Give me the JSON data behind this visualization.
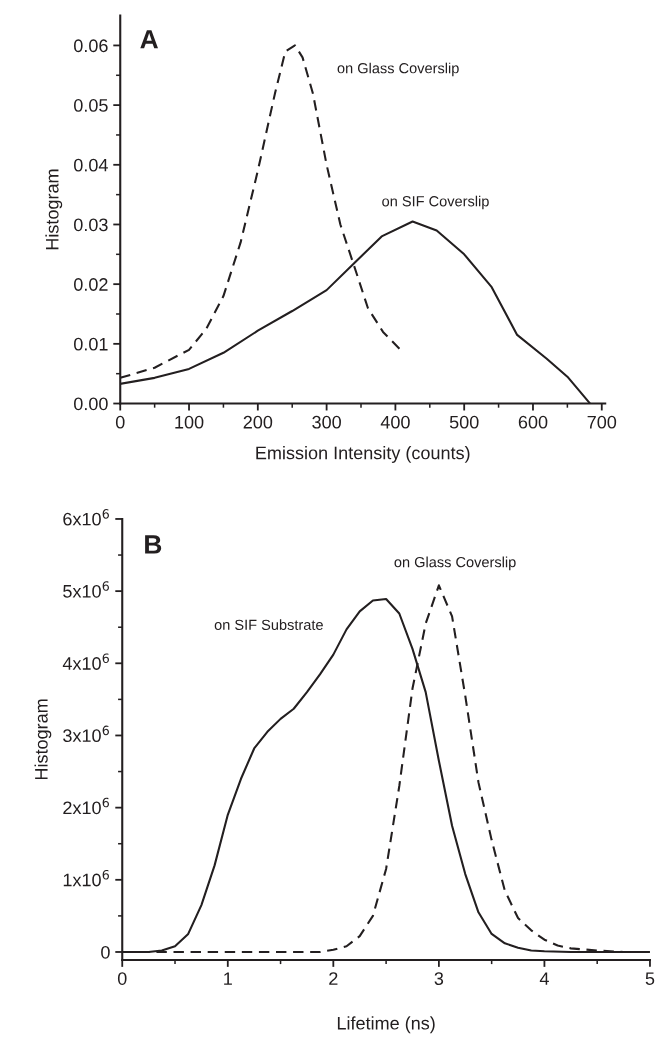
{
  "chart_data": [
    {
      "type": "line",
      "xlabel": "Emission Intensity (counts)",
      "ylabel": "Histogram",
      "xlim": [
        0,
        705
      ],
      "ylim": [
        0,
        0.065
      ],
      "xticks": [
        0,
        {
          "value": 50,
          "label": null
        },
        100,
        {
          "value": 150,
          "label": null
        },
        200,
        {
          "value": 250,
          "label": null
        },
        300,
        {
          "value": 350,
          "label": null
        },
        400,
        {
          "value": 450,
          "label": null
        },
        500,
        {
          "value": 550,
          "label": null
        },
        600,
        {
          "value": 650,
          "label": null
        },
        700
      ],
      "yticks": [
        {
          "value": 0,
          "label": "0.00"
        },
        {
          "value": 0.005,
          "label": null
        },
        {
          "value": 0.01,
          "label": "0.01"
        },
        {
          "value": 0.015,
          "label": null
        },
        {
          "value": 0.02,
          "label": "0.02"
        },
        {
          "value": 0.025,
          "label": null
        },
        {
          "value": 0.03,
          "label": "0.03"
        },
        {
          "value": 0.035,
          "label": null
        },
        {
          "value": 0.04,
          "label": "0.04"
        },
        {
          "value": 0.045,
          "label": null
        },
        {
          "value": 0.05,
          "label": "0.05"
        },
        {
          "value": 0.055,
          "label": null
        },
        {
          "value": 0.06,
          "label": "0.06"
        }
      ],
      "grid": false,
      "legend": false,
      "marker": "none",
      "annotations": [
        "A"
      ],
      "series": [
        {
          "name": "on Glass Coverslip",
          "color": "#231f20",
          "line_style": "dashed",
          "x": [
            0,
            50,
            100,
            125,
            150,
            175,
            200,
            225,
            240,
            254,
            265,
            280,
            300,
            320,
            343,
            360,
            382,
            410
          ],
          "values": [
            0.0043,
            0.006,
            0.009,
            0.0125,
            0.018,
            0.027,
            0.039,
            0.052,
            0.059,
            0.06,
            0.058,
            0.052,
            0.04,
            0.03,
            0.022,
            0.016,
            0.012,
            0.0087
          ]
        },
        {
          "name": "on SIF Coverslip",
          "color": "#231f20",
          "line_style": "solid",
          "x": [
            0,
            50,
            100,
            150,
            200,
            250,
            300,
            340,
            380,
            425,
            460,
            500,
            540,
            577,
            620,
            650,
            683
          ],
          "values": [
            0.0033,
            0.0043,
            0.0058,
            0.0085,
            0.0122,
            0.0155,
            0.019,
            0.0235,
            0.028,
            0.0305,
            0.029,
            0.025,
            0.0195,
            0.0115,
            0.0075,
            0.0045,
            0
          ]
        }
      ]
    },
    {
      "type": "line",
      "xlabel": "Lifetime (ns)",
      "ylabel": "Histogram",
      "xlim": [
        0,
        5
      ],
      "ylim": [
        -110000,
        6000000
      ],
      "xticks": [
        0,
        {
          "value": 0.5,
          "label": null
        },
        1,
        {
          "value": 1.5,
          "label": null
        },
        2,
        {
          "value": 2.5,
          "label": null
        },
        3,
        {
          "value": 3.5,
          "label": null
        },
        4,
        {
          "value": 4.5,
          "label": null
        },
        5
      ],
      "yticks": [
        0,
        {
          "value": 500000,
          "label": null
        },
        {
          "value": 1000000,
          "label": "1x10$^{6}$"
        },
        {
          "value": 1500000,
          "label": null
        },
        {
          "value": 2000000,
          "label": "2x10$^{6}$"
        },
        {
          "value": 2500000,
          "label": null
        },
        {
          "value": 3000000,
          "label": "3x10$^{6}$"
        },
        {
          "value": 3500000,
          "label": null
        },
        {
          "value": 4000000,
          "label": "4x10$^{6}$"
        },
        {
          "value": 4500000,
          "label": null
        },
        {
          "value": 5000000,
          "label": "5x10$^{6}$"
        },
        {
          "value": 5500000,
          "label": null
        },
        {
          "value": 6000000,
          "label": "6x10$^{6}$"
        }
      ],
      "grid": false,
      "legend": false,
      "marker": "none",
      "annotations": [
        "B"
      ],
      "series": [
        {
          "name": "on SIF Substrate",
          "color": "#231f20",
          "line_style": "solid",
          "x": [
            0,
            0.25,
            0.375,
            0.5,
            0.625,
            0.75,
            0.875,
            1.0,
            1.125,
            1.25,
            1.375,
            1.5,
            1.625,
            1.75,
            1.875,
            2.0,
            2.125,
            2.25,
            2.375,
            2.5,
            2.625,
            2.75,
            2.875,
            3.0,
            3.125,
            3.25,
            3.375,
            3.5,
            3.625,
            3.75,
            3.875,
            4.0,
            4.25,
            5
          ],
          "values": [
            0,
            0,
            20000,
            80000,
            250000,
            650000,
            1200000,
            1900000,
            2400000,
            2820000,
            3050000,
            3230000,
            3370000,
            3600000,
            3850000,
            4120000,
            4470000,
            4720000,
            4870000,
            4890000,
            4690000,
            4200000,
            3600000,
            2650000,
            1750000,
            1080000,
            550000,
            250000,
            120000,
            60000,
            20000,
            10000,
            0,
            0
          ]
        },
        {
          "name": "on Glass Coverslip",
          "color": "#231f20",
          "line_style": "dashed",
          "x": [
            0,
            1.0,
            1.5,
            1.875,
            2.0,
            2.125,
            2.25,
            2.375,
            2.5,
            2.625,
            2.75,
            2.875,
            3.0,
            3.125,
            3.25,
            3.375,
            3.5,
            3.625,
            3.75,
            3.875,
            4.0,
            4.125,
            4.25,
            4.5,
            4.75,
            5
          ],
          "values": [
            0,
            0,
            0,
            0,
            30000,
            80000,
            220000,
            500000,
            1150000,
            2300000,
            3650000,
            4550000,
            5080000,
            4650000,
            3550000,
            2350000,
            1550000,
            850000,
            470000,
            300000,
            170000,
            90000,
            50000,
            20000,
            0,
            0
          ]
        }
      ]
    }
  ]
}
